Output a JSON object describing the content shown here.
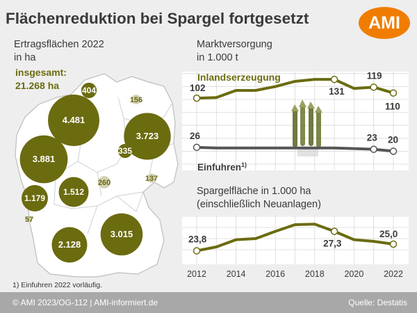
{
  "title": "Flächenreduktion bei Spargel fortgesetzt",
  "logo": "AMI",
  "map": {
    "subtitle_line1": "Ertragsflächen 2022",
    "subtitle_line2": "in ha",
    "total_line1": "insgesamt:",
    "total_line2": "21.268 ha"
  },
  "market": {
    "subtitle_line1": "Marktversorgung",
    "subtitle_line2": "in 1.000 t",
    "series_inland": "Inlandserzeugung",
    "series_import": "Einfuhren",
    "import_footnote_mark": "1)"
  },
  "area": {
    "subtitle_line1": "Spargelfläche in 1.000 ha",
    "subtitle_line2": "(einschließlich Neuanlagen)"
  },
  "footnote": "1) Einfuhren 2022 vorläufig.",
  "footer": {
    "left": "© AMI 2023/OG-112 | AMI-informiert.de",
    "right": "Quelle: Destatis"
  },
  "colors": {
    "olive": "#6b6b10",
    "grey_line": "#555555",
    "orange": "#f07d00"
  },
  "chart_data": [
    {
      "type": "bubble-map",
      "title": "Ertragsflächen 2022",
      "unit": "ha",
      "values": [
        {
          "label": "404",
          "value": 404
        },
        {
          "label": "156",
          "value": 156
        },
        {
          "label": "4.481",
          "value": 4481
        },
        {
          "label": "3.723",
          "value": 3723
        },
        {
          "label": "335",
          "value": 335
        },
        {
          "label": "3.881",
          "value": 3881
        },
        {
          "label": "260",
          "value": 260
        },
        {
          "label": "137",
          "value": 137
        },
        {
          "label": "1.179",
          "value": 1179
        },
        {
          "label": "1.512",
          "value": 1512
        },
        {
          "label": "57",
          "value": 57
        },
        {
          "label": "2.128",
          "value": 2128
        },
        {
          "label": "3.015",
          "value": 3015
        }
      ],
      "total": 21268
    },
    {
      "type": "line",
      "title": "Marktversorgung",
      "unit": "1.000 t",
      "x": [
        2012,
        2013,
        2014,
        2015,
        2016,
        2017,
        2018,
        2019,
        2020,
        2021,
        2022
      ],
      "series": [
        {
          "name": "Inlandserzeugung",
          "values": [
            102,
            103,
            114,
            114,
            120,
            128,
            131,
            131,
            117,
            119,
            110
          ]
        },
        {
          "name": "Einfuhren",
          "values": [
            26,
            25,
            25,
            25,
            25,
            25,
            25,
            25,
            24,
            23,
            20
          ]
        }
      ],
      "labels": [
        {
          "x": 2012,
          "series": "Inlandserzeugung",
          "text": "102"
        },
        {
          "x": 2019,
          "series": "Inlandserzeugung",
          "text": "131"
        },
        {
          "x": 2021,
          "series": "Inlandserzeugung",
          "text": "119"
        },
        {
          "x": 2022,
          "series": "Inlandserzeugung",
          "text": "110"
        },
        {
          "x": 2012,
          "series": "Einfuhren",
          "text": "26"
        },
        {
          "x": 2021,
          "series": "Einfuhren",
          "text": "23"
        },
        {
          "x": 2022,
          "series": "Einfuhren",
          "text": "20"
        }
      ],
      "ylim": [
        0,
        140
      ]
    },
    {
      "type": "line",
      "title": "Spargelfläche",
      "unit": "1.000 ha",
      "x": [
        2012,
        2013,
        2014,
        2015,
        2016,
        2017,
        2018,
        2019,
        2020,
        2021,
        2022
      ],
      "xticks": [
        "2012",
        "2014",
        "2016",
        "2018",
        "2020",
        "2022"
      ],
      "series": [
        {
          "name": "Spargelfläche",
          "values": [
            23.8,
            24.5,
            25.8,
            26.0,
            27.3,
            28.5,
            28.6,
            27.3,
            25.8,
            25.5,
            25.0
          ]
        }
      ],
      "labels": [
        {
          "x": 2012,
          "text": "23,8"
        },
        {
          "x": 2019,
          "text": "27,3"
        },
        {
          "x": 2022,
          "text": "25,0"
        }
      ],
      "ylim": [
        22,
        30
      ]
    }
  ]
}
